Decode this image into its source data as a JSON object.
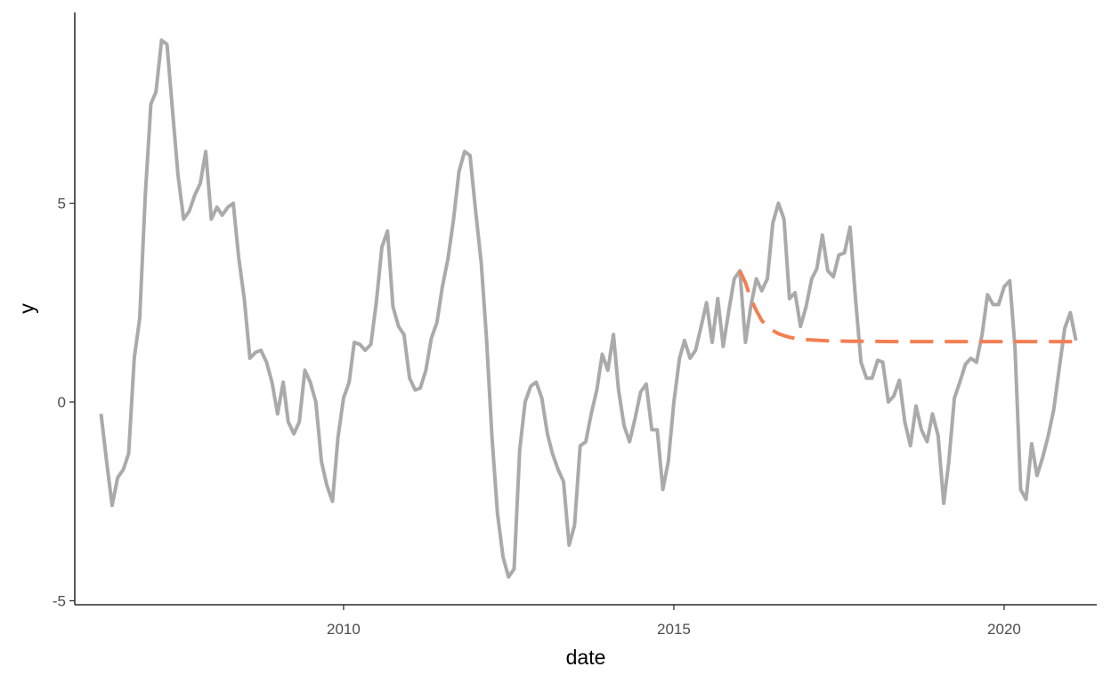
{
  "colors": {
    "observed": "#aaaaaa",
    "forecast": "#f47f52",
    "axis": "#000000",
    "tick_label": "#4d4d4d",
    "background": "#ffffff"
  },
  "chart_data": {
    "type": "line",
    "xlabel": "date",
    "ylabel": "y",
    "x_type": "date",
    "xlim": [
      "2005-12-07",
      "2021-05-27"
    ],
    "ylim": [
      -5.1,
      9.8
    ],
    "x_ticks": [
      {
        "value": "2010-01-01",
        "label": "2010"
      },
      {
        "value": "2015-01-01",
        "label": "2015"
      },
      {
        "value": "2020-01-01",
        "label": "2020"
      }
    ],
    "y_ticks": [
      {
        "value": -5,
        "label": "-5"
      },
      {
        "value": 0,
        "label": "0"
      },
      {
        "value": 5,
        "label": "5"
      }
    ],
    "grid": false,
    "legend": "none",
    "series": [
      {
        "style": "solid",
        "color": "#aaaaaa",
        "points": [
          [
            "2006-05-01",
            -0.3
          ],
          [
            "2006-06-01",
            -1.5
          ],
          [
            "2006-07-01",
            -2.6
          ],
          [
            "2006-08-01",
            -1.9
          ],
          [
            "2006-09-01",
            -1.7
          ],
          [
            "2006-10-01",
            -1.3
          ],
          [
            "2006-11-01",
            1.1
          ],
          [
            "2006-12-01",
            2.1
          ],
          [
            "2007-01-01",
            5.2
          ],
          [
            "2007-02-01",
            7.5
          ],
          [
            "2007-03-01",
            7.8
          ],
          [
            "2007-04-01",
            9.1
          ],
          [
            "2007-05-01",
            9.0
          ],
          [
            "2007-06-01",
            7.3
          ],
          [
            "2007-07-01",
            5.7
          ],
          [
            "2007-08-01",
            4.6
          ],
          [
            "2007-09-01",
            4.8
          ],
          [
            "2007-10-01",
            5.2
          ],
          [
            "2007-11-01",
            5.5
          ],
          [
            "2007-12-01",
            6.3
          ],
          [
            "2008-01-01",
            4.6
          ],
          [
            "2008-02-01",
            4.9
          ],
          [
            "2008-03-01",
            4.7
          ],
          [
            "2008-04-01",
            4.9
          ],
          [
            "2008-05-01",
            5.0
          ],
          [
            "2008-06-01",
            3.6
          ],
          [
            "2008-07-01",
            2.6
          ],
          [
            "2008-08-01",
            1.1
          ],
          [
            "2008-09-01",
            1.25
          ],
          [
            "2008-10-01",
            1.3
          ],
          [
            "2008-11-01",
            1.0
          ],
          [
            "2008-12-01",
            0.5
          ],
          [
            "2009-01-01",
            -0.3
          ],
          [
            "2009-02-01",
            0.5
          ],
          [
            "2009-03-01",
            -0.5
          ],
          [
            "2009-04-01",
            -0.8
          ],
          [
            "2009-05-01",
            -0.5
          ],
          [
            "2009-06-01",
            0.8
          ],
          [
            "2009-07-01",
            0.5
          ],
          [
            "2009-08-01",
            0.0
          ],
          [
            "2009-09-01",
            -1.5
          ],
          [
            "2009-10-01",
            -2.1
          ],
          [
            "2009-11-01",
            -2.5
          ],
          [
            "2009-12-01",
            -0.9
          ],
          [
            "2010-01-01",
            0.1
          ],
          [
            "2010-02-01",
            0.5
          ],
          [
            "2010-03-01",
            1.5
          ],
          [
            "2010-04-01",
            1.45
          ],
          [
            "2010-05-01",
            1.3
          ],
          [
            "2010-06-01",
            1.45
          ],
          [
            "2010-07-01",
            2.5
          ],
          [
            "2010-08-01",
            3.9
          ],
          [
            "2010-09-01",
            4.3
          ],
          [
            "2010-10-01",
            2.4
          ],
          [
            "2010-11-01",
            1.9
          ],
          [
            "2010-12-01",
            1.7
          ],
          [
            "2011-01-01",
            0.6
          ],
          [
            "2011-02-01",
            0.3
          ],
          [
            "2011-03-01",
            0.35
          ],
          [
            "2011-04-01",
            0.8
          ],
          [
            "2011-05-01",
            1.6
          ],
          [
            "2011-06-01",
            2.0
          ],
          [
            "2011-07-01",
            2.9
          ],
          [
            "2011-08-01",
            3.6
          ],
          [
            "2011-09-01",
            4.6
          ],
          [
            "2011-10-01",
            5.8
          ],
          [
            "2011-11-01",
            6.3
          ],
          [
            "2011-12-01",
            6.2
          ],
          [
            "2012-01-01",
            4.8
          ],
          [
            "2012-02-01",
            3.5
          ],
          [
            "2012-03-01",
            1.6
          ],
          [
            "2012-04-01",
            -0.9
          ],
          [
            "2012-05-01",
            -2.8
          ],
          [
            "2012-06-01",
            -3.9
          ],
          [
            "2012-07-01",
            -4.4
          ],
          [
            "2012-08-01",
            -4.2
          ],
          [
            "2012-09-01",
            -1.2
          ],
          [
            "2012-10-01",
            0.0
          ],
          [
            "2012-11-01",
            0.4
          ],
          [
            "2012-12-01",
            0.5
          ],
          [
            "2013-01-01",
            0.1
          ],
          [
            "2013-02-01",
            -0.8
          ],
          [
            "2013-03-01",
            -1.3
          ],
          [
            "2013-04-01",
            -1.7
          ],
          [
            "2013-05-01",
            -2.0
          ],
          [
            "2013-06-01",
            -3.6
          ],
          [
            "2013-07-01",
            -3.1
          ],
          [
            "2013-08-01",
            -1.1
          ],
          [
            "2013-09-01",
            -1.0
          ],
          [
            "2013-10-01",
            -0.3
          ],
          [
            "2013-11-01",
            0.3
          ],
          [
            "2013-12-01",
            1.2
          ],
          [
            "2014-01-01",
            0.8
          ],
          [
            "2014-02-01",
            1.7
          ],
          [
            "2014-03-01",
            0.3
          ],
          [
            "2014-04-01",
            -0.6
          ],
          [
            "2014-05-01",
            -1.0
          ],
          [
            "2014-06-01",
            -0.4
          ],
          [
            "2014-07-01",
            0.25
          ],
          [
            "2014-08-01",
            0.45
          ],
          [
            "2014-09-01",
            -0.7
          ],
          [
            "2014-10-01",
            -0.7
          ],
          [
            "2014-11-01",
            -2.2
          ],
          [
            "2014-12-01",
            -1.5
          ],
          [
            "2015-01-01",
            0.0
          ],
          [
            "2015-02-01",
            1.1
          ],
          [
            "2015-03-01",
            1.55
          ],
          [
            "2015-04-01",
            1.1
          ],
          [
            "2015-05-01",
            1.3
          ],
          [
            "2015-06-01",
            1.9
          ],
          [
            "2015-07-01",
            2.5
          ],
          [
            "2015-08-01",
            1.5
          ],
          [
            "2015-09-01",
            2.6
          ],
          [
            "2015-10-01",
            1.4
          ],
          [
            "2015-11-01",
            2.3
          ],
          [
            "2015-12-01",
            3.1
          ],
          [
            "2016-01-01",
            3.3
          ],
          [
            "2016-02-01",
            1.5
          ],
          [
            "2016-03-01",
            2.4
          ],
          [
            "2016-04-01",
            3.1
          ],
          [
            "2016-05-01",
            2.8
          ],
          [
            "2016-06-01",
            3.1
          ],
          [
            "2016-07-01",
            4.5
          ],
          [
            "2016-08-01",
            5.0
          ],
          [
            "2016-09-01",
            4.6
          ],
          [
            "2016-10-01",
            2.6
          ],
          [
            "2016-11-01",
            2.75
          ],
          [
            "2016-12-01",
            1.9
          ],
          [
            "2017-01-01",
            2.4
          ],
          [
            "2017-02-01",
            3.1
          ],
          [
            "2017-03-01",
            3.35
          ],
          [
            "2017-04-01",
            4.2
          ],
          [
            "2017-05-01",
            3.3
          ],
          [
            "2017-06-01",
            3.15
          ],
          [
            "2017-07-01",
            3.7
          ],
          [
            "2017-08-01",
            3.75
          ],
          [
            "2017-09-01",
            4.4
          ],
          [
            "2017-10-01",
            2.6
          ],
          [
            "2017-11-01",
            1.0
          ],
          [
            "2017-12-01",
            0.6
          ],
          [
            "2018-01-01",
            0.6
          ],
          [
            "2018-02-01",
            1.05
          ],
          [
            "2018-03-01",
            1.0
          ],
          [
            "2018-04-01",
            0.0
          ],
          [
            "2018-05-01",
            0.15
          ],
          [
            "2018-06-01",
            0.55
          ],
          [
            "2018-07-01",
            -0.5
          ],
          [
            "2018-08-01",
            -1.1
          ],
          [
            "2018-09-01",
            -0.1
          ],
          [
            "2018-10-01",
            -0.7
          ],
          [
            "2018-11-01",
            -1.0
          ],
          [
            "2018-12-01",
            -0.3
          ],
          [
            "2019-01-01",
            -0.85
          ],
          [
            "2019-02-01",
            -2.55
          ],
          [
            "2019-03-01",
            -1.5
          ],
          [
            "2019-04-01",
            0.1
          ],
          [
            "2019-05-01",
            0.5
          ],
          [
            "2019-06-01",
            0.95
          ],
          [
            "2019-07-01",
            1.1
          ],
          [
            "2019-08-01",
            1.0
          ],
          [
            "2019-09-01",
            1.7
          ],
          [
            "2019-10-01",
            2.7
          ],
          [
            "2019-11-01",
            2.45
          ],
          [
            "2019-12-01",
            2.45
          ],
          [
            "2020-01-01",
            2.9
          ],
          [
            "2020-02-01",
            3.05
          ],
          [
            "2020-03-01",
            1.35
          ],
          [
            "2020-04-01",
            -2.2
          ],
          [
            "2020-05-01",
            -2.45
          ],
          [
            "2020-06-01",
            -1.05
          ],
          [
            "2020-07-01",
            -1.85
          ],
          [
            "2020-08-01",
            -1.4
          ],
          [
            "2020-09-01",
            -0.85
          ],
          [
            "2020-10-01",
            -0.2
          ],
          [
            "2020-11-01",
            0.85
          ],
          [
            "2020-12-01",
            1.85
          ],
          [
            "2021-01-01",
            2.25
          ],
          [
            "2021-02-01",
            1.55
          ]
        ]
      },
      {
        "style": "dashed",
        "color": "#f47f52",
        "points": [
          [
            "2016-01-01",
            3.3
          ],
          [
            "2016-02-01",
            3.0
          ],
          [
            "2016-03-01",
            2.6
          ],
          [
            "2016-04-01",
            2.3
          ],
          [
            "2016-05-01",
            2.05
          ],
          [
            "2016-06-01",
            1.9
          ],
          [
            "2016-07-01",
            1.8
          ],
          [
            "2016-08-01",
            1.72
          ],
          [
            "2016-09-01",
            1.67
          ],
          [
            "2016-10-01",
            1.63
          ],
          [
            "2016-11-01",
            1.6
          ],
          [
            "2016-12-01",
            1.58
          ],
          [
            "2017-02-01",
            1.56
          ],
          [
            "2017-05-01",
            1.54
          ],
          [
            "2017-09-01",
            1.53
          ],
          [
            "2018-06-01",
            1.52
          ],
          [
            "2019-06-01",
            1.52
          ],
          [
            "2020-06-01",
            1.52
          ],
          [
            "2021-02-01",
            1.52
          ]
        ]
      }
    ]
  }
}
